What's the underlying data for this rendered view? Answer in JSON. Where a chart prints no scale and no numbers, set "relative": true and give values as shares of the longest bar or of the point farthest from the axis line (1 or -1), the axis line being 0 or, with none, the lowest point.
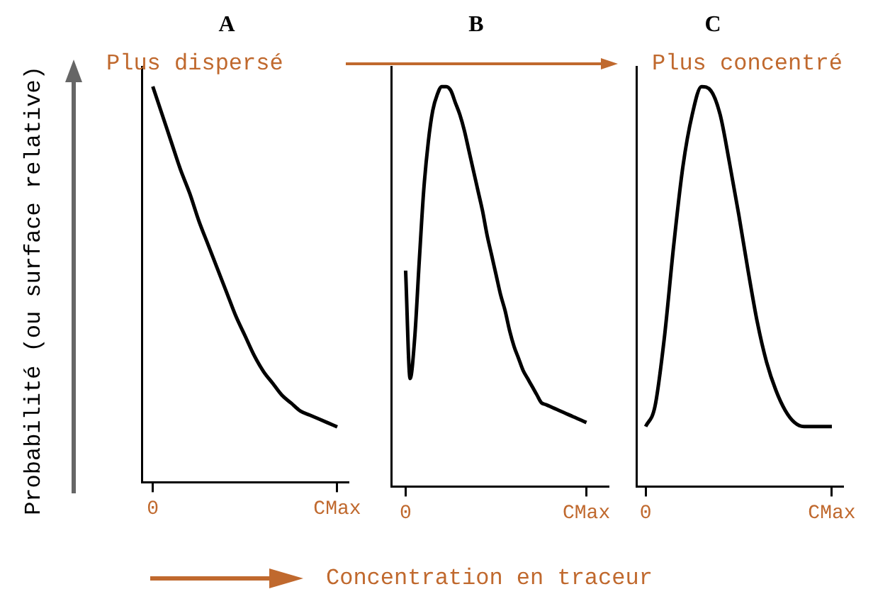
{
  "chart_data": [
    {
      "type": "line",
      "title": "A",
      "ylabel": "Probabilité (ou surface relative)",
      "annotations": [
        "Plus dispersé"
      ],
      "relative": true,
      "grid": false,
      "legend": false,
      "marker": "none",
      "categories": [
        "0",
        null,
        null,
        null,
        null,
        null,
        null,
        null,
        null,
        null,
        null,
        null,
        null,
        null,
        null,
        null,
        null,
        null,
        null,
        null,
        "CMax"
      ],
      "series": [
        {
          "color": "#000000",
          "values": [
            1,
            0.93,
            0.86,
            0.79,
            0.73,
            0.66,
            0.6,
            0.54,
            0.48,
            0.42,
            0.37,
            0.32,
            0.28,
            0.25,
            0.22,
            0.2,
            0.18,
            0.17,
            0.16,
            0.15,
            0.14
          ]
        }
      ]
    },
    {
      "type": "line",
      "title": "B",
      "xlabel": "Concentration en traceur",
      "relative": true,
      "grid": false,
      "legend": false,
      "marker": "none",
      "categories": [
        "0",
        null,
        null,
        null,
        null,
        null,
        null,
        null,
        null,
        null,
        null,
        null,
        null,
        null,
        null,
        null,
        null,
        null,
        null,
        null,
        null,
        null,
        null,
        null,
        null,
        null,
        null,
        null,
        null,
        null,
        null,
        null,
        null,
        null,
        null,
        null,
        null,
        null,
        null,
        null,
        "CMax"
      ],
      "series": [
        {
          "color": "#000000",
          "values": [
            0.54,
            0.27,
            0.37,
            0.56,
            0.74,
            0.86,
            0.94,
            0.98,
            1,
            1,
            0.99,
            0.96,
            0.93,
            0.89,
            0.84,
            0.79,
            0.74,
            0.69,
            0.63,
            0.58,
            0.53,
            0.48,
            0.44,
            0.39,
            0.35,
            0.32,
            0.29,
            0.27,
            0.25,
            0.23,
            0.21,
            0.205,
            0.2,
            0.195,
            0.19,
            0.185,
            0.18,
            0.175,
            0.17,
            0.165,
            0.16
          ]
        }
      ]
    },
    {
      "type": "line",
      "title": "C",
      "annotations": [
        "Plus concentré"
      ],
      "relative": true,
      "grid": false,
      "legend": false,
      "marker": "none",
      "categories": [
        "0",
        null,
        null,
        null,
        null,
        null,
        null,
        null,
        null,
        null,
        null,
        null,
        null,
        null,
        null,
        null,
        null,
        null,
        null,
        null,
        "CMax"
      ],
      "series": [
        {
          "color": "#000000",
          "values": [
            0.15,
            0.2,
            0.37,
            0.6,
            0.8,
            0.93,
            1,
            0.99,
            0.93,
            0.81,
            0.68,
            0.54,
            0.41,
            0.31,
            0.24,
            0.19,
            0.16,
            0.15,
            0.15,
            0.15,
            0.15
          ]
        }
      ]
    }
  ]
}
